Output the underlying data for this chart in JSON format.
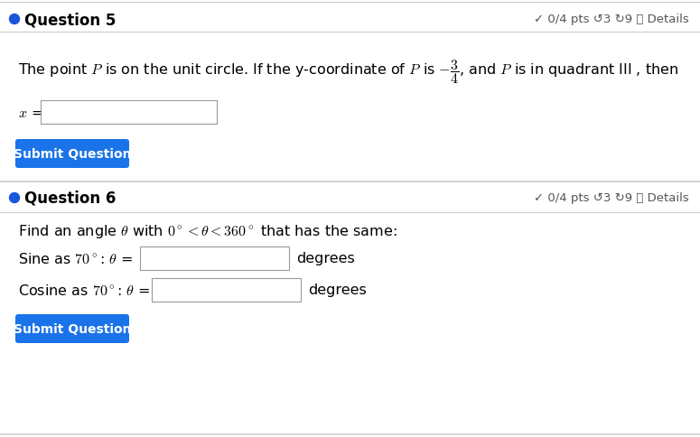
{
  "bg_color": "#ffffff",
  "line_color": "#cccccc",
  "bullet_color": "#1a56db",
  "q5_label": "Question 5",
  "q5_pts": "✓ 0/4 pts ↺3 ↻9 ⓘ Details",
  "q6_label": "Question 6",
  "q6_pts": "✓ 0/4 pts ↺3 ↻9 ⓘ Details",
  "input_border_color": "#999999",
  "input_bg": "#ffffff",
  "btn_color": "#1a73e8",
  "btn_text": "Submit Question",
  "btn_text_color": "#ffffff",
  "q5_body": "The point $\\mathit{P}$ is on the unit circle. If the y-coordinate of $\\mathit{P}$ is $-\\dfrac{3}{4}$, and $\\mathit{P}$ is in quadrant III , then",
  "x_label": "$x$ =",
  "q6_body": "Find an angle $\\theta$ with $0^\\circ < \\theta < 360^\\circ$ that has the same:",
  "sine_label": "Sine as $70^\\circ$: $\\theta$ =",
  "sine_suffix": "degrees",
  "cosine_label": "Cosine as $70^\\circ$: $\\theta$ =",
  "cosine_suffix": "degrees",
  "fs_body": 11.5,
  "fs_header": 12,
  "fs_btn": 10,
  "fs_pts": 9.5
}
